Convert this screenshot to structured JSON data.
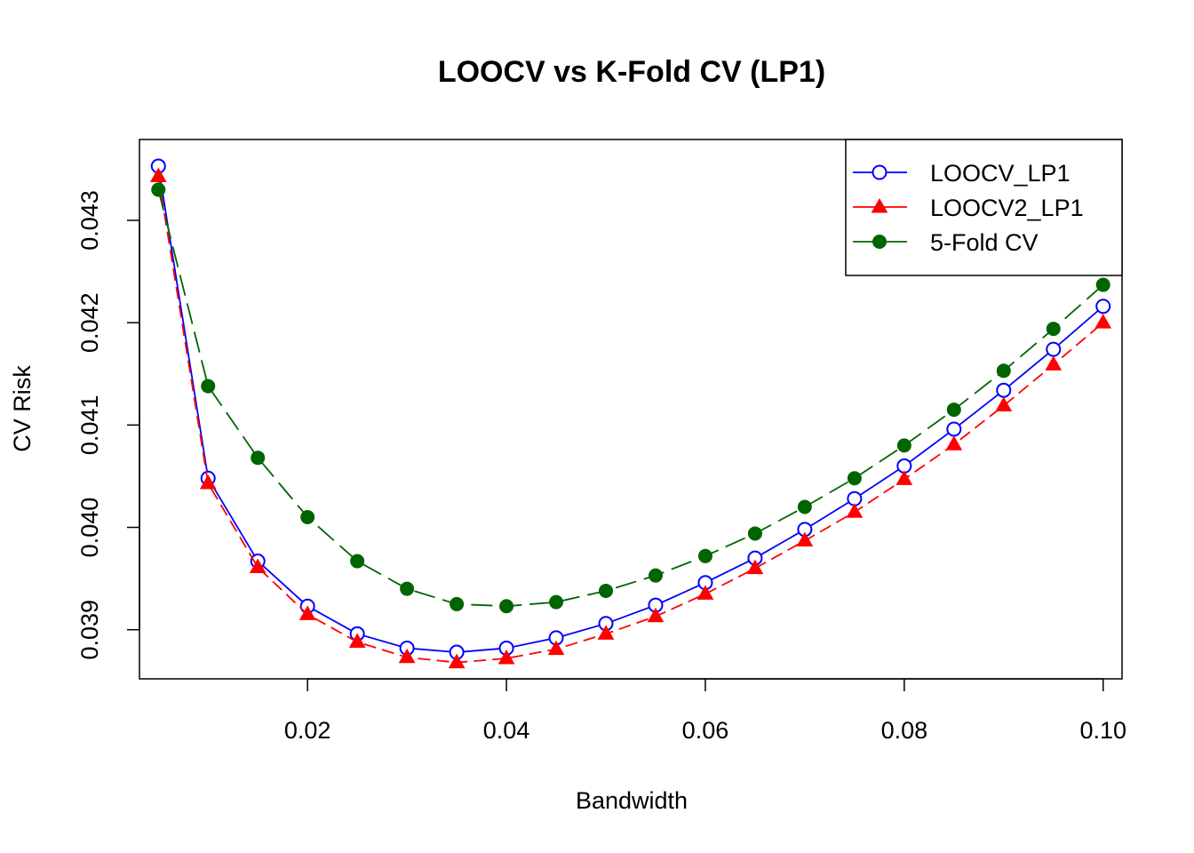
{
  "chart_data": {
    "type": "line",
    "title": "LOOCV vs K-Fold CV (LP1)",
    "xlabel": "Bandwidth",
    "ylabel": "CV Risk",
    "xlim": [
      0.0031,
      0.1019
    ],
    "ylim": [
      0.03852,
      0.04379
    ],
    "x_ticks": [
      {
        "value": 0.02,
        "label": "0.02"
      },
      {
        "value": 0.04,
        "label": "0.04"
      },
      {
        "value": 0.06,
        "label": "0.06"
      },
      {
        "value": 0.08,
        "label": "0.08"
      },
      {
        "value": 0.1,
        "label": "0.10"
      }
    ],
    "y_ticks": [
      {
        "value": 0.039,
        "label": "0.039"
      },
      {
        "value": 0.04,
        "label": "0.040"
      },
      {
        "value": 0.041,
        "label": "0.041"
      },
      {
        "value": 0.042,
        "label": "0.042"
      },
      {
        "value": 0.043,
        "label": "0.043"
      }
    ],
    "grid": false,
    "legend_position": "top-right",
    "x": [
      0.005,
      0.01,
      0.015,
      0.02,
      0.025,
      0.03,
      0.035,
      0.04,
      0.045,
      0.05,
      0.055,
      0.06,
      0.065,
      0.07,
      0.075,
      0.08,
      0.085,
      0.09,
      0.095,
      0.1
    ],
    "series": [
      {
        "name": "LOOCV_LP1",
        "color": "#0000ff",
        "marker": "open-circle",
        "line": "solid",
        "values": [
          0.04353,
          0.04048,
          0.03967,
          0.03923,
          0.03896,
          0.03882,
          0.03878,
          0.03882,
          0.03892,
          0.03906,
          0.03924,
          0.03946,
          0.0397,
          0.03998,
          0.04028,
          0.0406,
          0.04096,
          0.04134,
          0.04174,
          0.04216
        ]
      },
      {
        "name": "LOOCV2_LP1",
        "color": "#ff0000",
        "marker": "filled-triangle",
        "line": "dashed",
        "values": [
          0.04343,
          0.04043,
          0.03961,
          0.03915,
          0.03888,
          0.03873,
          0.03868,
          0.03872,
          0.03881,
          0.03896,
          0.03913,
          0.03935,
          0.0396,
          0.03987,
          0.04015,
          0.04047,
          0.04081,
          0.04119,
          0.04159,
          0.042
        ]
      },
      {
        "name": "5-Fold CV",
        "color": "#006400",
        "marker": "filled-circle",
        "line": "long-dashed",
        "values": [
          0.0433,
          0.04138,
          0.04068,
          0.0401,
          0.03967,
          0.0394,
          0.03925,
          0.03923,
          0.03927,
          0.03938,
          0.03953,
          0.03972,
          0.03994,
          0.0402,
          0.04048,
          0.0408,
          0.04115,
          0.04153,
          0.04194,
          0.04237
        ]
      }
    ]
  }
}
